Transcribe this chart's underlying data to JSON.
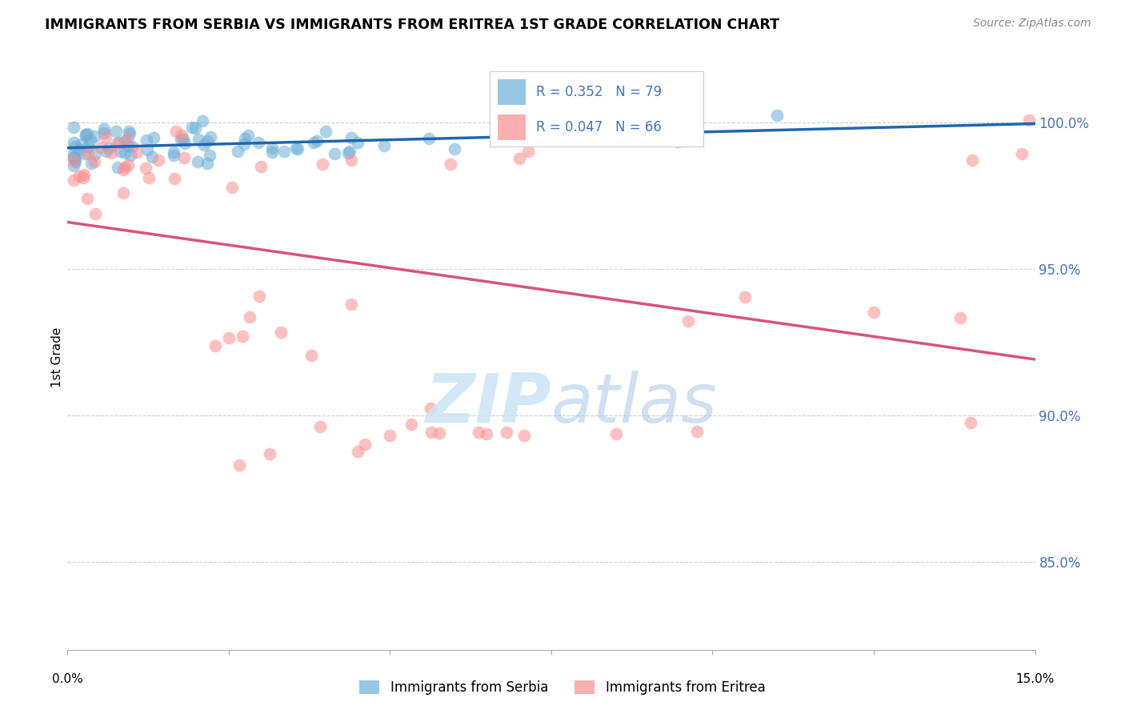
{
  "title": "IMMIGRANTS FROM SERBIA VS IMMIGRANTS FROM ERITREA 1ST GRADE CORRELATION CHART",
  "source": "Source: ZipAtlas.com",
  "ylabel": "1st Grade",
  "xlim": [
    0.0,
    0.15
  ],
  "ylim": [
    82.0,
    102.0
  ],
  "serbia_R": 0.352,
  "serbia_N": 79,
  "eritrea_R": 0.047,
  "eritrea_N": 66,
  "serbia_color": "#6baed6",
  "eritrea_color": "#fc8d8d",
  "serbia_line_color": "#2166ac",
  "eritrea_line_color": "#d6547a",
  "right_axis_color": "#4472c4",
  "grid_color": "#cccccc",
  "yticks": [
    85.0,
    90.0,
    95.0,
    100.0
  ],
  "ytick_labels": [
    "85.0%",
    "90.0%",
    "95.0%",
    "100.0%"
  ],
  "watermark_color": "#cce4f5"
}
